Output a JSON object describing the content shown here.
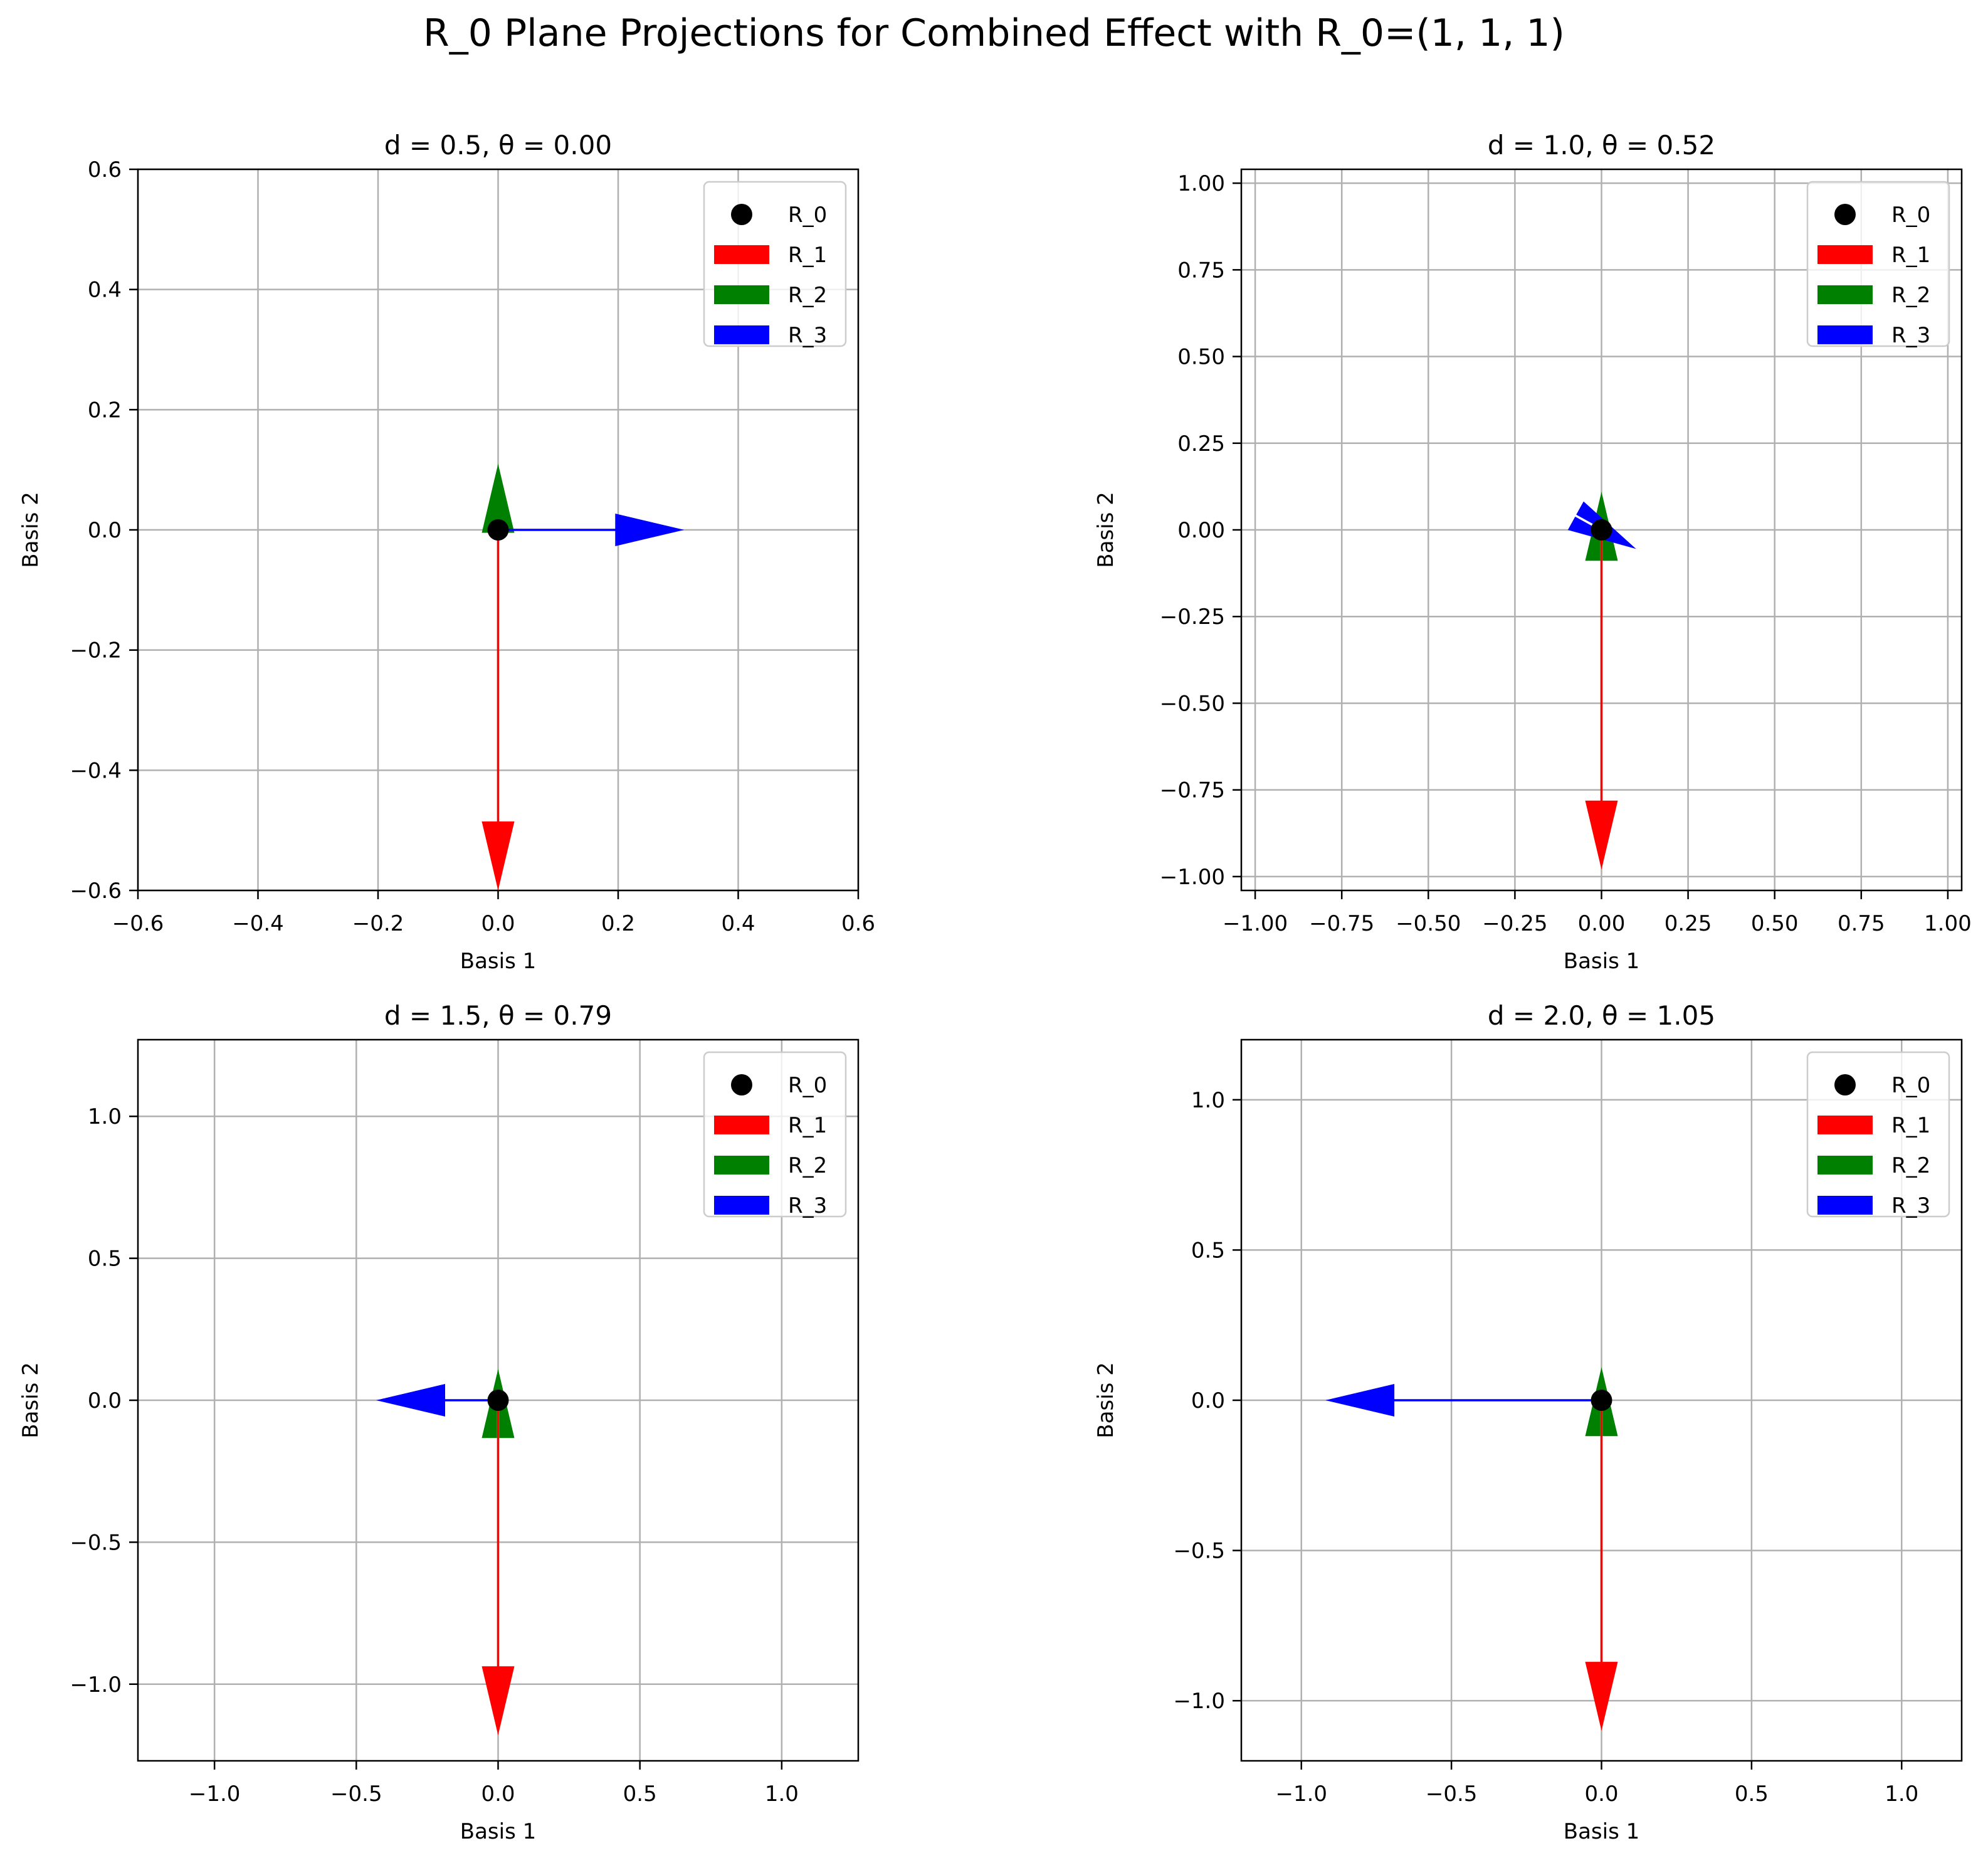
{
  "figure_title": "R_0 Plane Projections for Combined Effect with R_0=(1, 1, 1)",
  "chart_data": [
    {
      "type": "quiver",
      "title": "d = 0.5, θ = 0.00",
      "xlabel": "Basis 1",
      "ylabel": "Basis 2",
      "xlim": [
        -0.6,
        0.6
      ],
      "ylim": [
        -0.6,
        0.6
      ],
      "xticks": [
        -0.6,
        -0.4,
        -0.2,
        0.0,
        0.2,
        0.4,
        0.6
      ],
      "yticks": [
        -0.6,
        -0.4,
        -0.2,
        0.0,
        0.2,
        0.4,
        0.6
      ],
      "xtick_labels": [
        "−0.6",
        "−0.4",
        "−0.2",
        "0.0",
        "0.2",
        "0.4",
        "0.6"
      ],
      "ytick_labels": [
        "−0.6",
        "−0.4",
        "−0.2",
        "0.0",
        "0.2",
        "0.4",
        "0.6"
      ],
      "grid": true,
      "legend_position": "top-right",
      "point": {
        "name": "R_0",
        "x": 0,
        "y": 0,
        "color": "#000000"
      },
      "vectors": [
        {
          "name": "R_1",
          "x": 0,
          "y": -0.6,
          "color": "#ff0000"
        },
        {
          "name": "R_2",
          "x": 0,
          "y": 0.11,
          "color": "#008000"
        },
        {
          "name": "R_3",
          "x": 0.31,
          "y": 0,
          "color": "#0000ff"
        }
      ]
    },
    {
      "type": "quiver",
      "title": "d = 1.0, θ = 0.52",
      "xlabel": "Basis 1",
      "ylabel": "Basis 2",
      "xlim": [
        -1.04,
        1.04
      ],
      "ylim": [
        -1.04,
        1.04
      ],
      "xticks": [
        -1.0,
        -0.75,
        -0.5,
        -0.25,
        0.0,
        0.25,
        0.5,
        0.75,
        1.0
      ],
      "yticks": [
        -1.0,
        -0.75,
        -0.5,
        -0.25,
        0.0,
        0.25,
        0.5,
        0.75,
        1.0
      ],
      "xtick_labels": [
        "−1.00",
        "−0.75",
        "−0.50",
        "−0.25",
        "0.00",
        "0.25",
        "0.50",
        "0.75",
        "1.00"
      ],
      "ytick_labels": [
        "−1.00",
        "−0.75",
        "−0.50",
        "−0.25",
        "0.00",
        "0.25",
        "0.50",
        "0.75",
        "1.00"
      ],
      "grid": true,
      "legend_position": "top-right",
      "point": {
        "name": "R_0",
        "x": 0,
        "y": 0,
        "color": "#000000"
      },
      "vectors": [
        {
          "name": "R_1",
          "x": 0,
          "y": -0.98,
          "color": "#ff0000"
        },
        {
          "name": "R_2",
          "x": 0,
          "y": 0.11,
          "color": "#008000"
        },
        {
          "name": "R_3",
          "x": 0.1,
          "y": -0.055,
          "color": "#0000ff"
        }
      ]
    },
    {
      "type": "quiver",
      "title": "d = 1.5, θ = 0.79",
      "xlabel": "Basis 1",
      "ylabel": "Basis 2",
      "xlim": [
        -1.27,
        1.27
      ],
      "ylim": [
        -1.27,
        1.27
      ],
      "xticks": [
        -1.0,
        -0.5,
        0.0,
        0.5,
        1.0
      ],
      "yticks": [
        -1.0,
        -0.5,
        0.0,
        0.5,
        1.0
      ],
      "xtick_labels": [
        "−1.0",
        "−0.5",
        "0.0",
        "0.5",
        "1.0"
      ],
      "ytick_labels": [
        "−1.0",
        "−0.5",
        "0.0",
        "0.5",
        "1.0"
      ],
      "grid": true,
      "legend_position": "top-right",
      "point": {
        "name": "R_0",
        "x": 0,
        "y": 0,
        "color": "#000000"
      },
      "vectors": [
        {
          "name": "R_1",
          "x": 0,
          "y": -1.18,
          "color": "#ff0000"
        },
        {
          "name": "R_2",
          "x": 0,
          "y": 0.11,
          "color": "#008000"
        },
        {
          "name": "R_3",
          "x": -0.43,
          "y": 0,
          "color": "#0000ff"
        }
      ]
    },
    {
      "type": "quiver",
      "title": "d = 2.0, θ = 1.05",
      "xlabel": "Basis 1",
      "ylabel": "Basis 2",
      "xlim": [
        -1.2,
        1.2
      ],
      "ylim": [
        -1.2,
        1.2
      ],
      "xticks": [
        -1.0,
        -0.5,
        0.0,
        0.5,
        1.0
      ],
      "yticks": [
        -1.0,
        -0.5,
        0.0,
        0.5,
        1.0
      ],
      "xtick_labels": [
        "−1.0",
        "−0.5",
        "0.0",
        "0.5",
        "1.0"
      ],
      "ytick_labels": [
        "−1.0",
        "−0.5",
        "0.0",
        "0.5",
        "1.0"
      ],
      "grid": true,
      "legend_position": "top-right",
      "point": {
        "name": "R_0",
        "x": 0,
        "y": 0,
        "color": "#000000"
      },
      "vectors": [
        {
          "name": "R_1",
          "x": 0,
          "y": -1.1,
          "color": "#ff0000"
        },
        {
          "name": "R_2",
          "x": 0,
          "y": 0.11,
          "color": "#008000"
        },
        {
          "name": "R_3",
          "x": -0.92,
          "y": 0,
          "color": "#0000ff"
        }
      ]
    }
  ]
}
